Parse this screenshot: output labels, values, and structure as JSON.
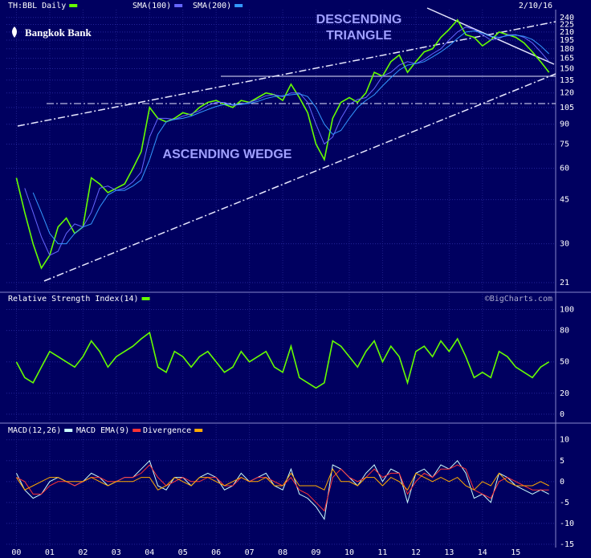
{
  "chart_data": [
    {
      "type": "line",
      "log_scale": true,
      "grid": true,
      "logo": "Bangkok Bank",
      "date": "2/10/16",
      "source": "©BigCharts.com",
      "annotations": [
        "DESCENDING",
        "TRIANGLE",
        "ASCENDING WEDGE"
      ],
      "x": [
        2000,
        2000.25,
        2000.5,
        2000.75,
        2001,
        2001.25,
        2001.5,
        2001.75,
        2002,
        2002.25,
        2002.5,
        2002.75,
        2003,
        2003.25,
        2003.5,
        2003.75,
        2004,
        2004.25,
        2004.5,
        2004.75,
        2005,
        2005.25,
        2005.5,
        2005.75,
        2006,
        2006.25,
        2006.5,
        2006.75,
        2007,
        2007.25,
        2007.5,
        2007.75,
        2008,
        2008.25,
        2008.5,
        2008.75,
        2009,
        2009.25,
        2009.5,
        2009.75,
        2010,
        2010.25,
        2010.5,
        2010.75,
        2011,
        2011.25,
        2011.5,
        2011.75,
        2012,
        2012.25,
        2012.5,
        2012.75,
        2013,
        2013.25,
        2013.5,
        2013.75,
        2014,
        2014.25,
        2014.5,
        2014.75,
        2015,
        2015.25,
        2015.5,
        2015.75,
        2016
      ],
      "xlim": [
        1999.7,
        2016.2
      ],
      "xticks": [
        {
          "value": 2000,
          "label": "00"
        },
        {
          "value": 2001,
          "label": "01"
        },
        {
          "value": 2002,
          "label": "02"
        },
        {
          "value": 2003,
          "label": "03"
        },
        {
          "value": 2004,
          "label": "04"
        },
        {
          "value": 2005,
          "label": "05"
        },
        {
          "value": 2006,
          "label": "06"
        },
        {
          "value": 2007,
          "label": "07"
        },
        {
          "value": 2008,
          "label": "08"
        },
        {
          "value": 2009,
          "label": "09"
        },
        {
          "value": 2010,
          "label": "10"
        },
        {
          "value": 2011,
          "label": "11"
        },
        {
          "value": 2012,
          "label": "12"
        },
        {
          "value": 2013,
          "label": "13"
        },
        {
          "value": 2014,
          "label": "14"
        },
        {
          "value": 2015,
          "label": "15"
        }
      ],
      "ylim": [
        19.5,
        258
      ],
      "yticks": [
        240,
        225,
        210,
        195,
        180,
        165,
        150,
        135,
        120,
        105,
        90,
        75,
        60,
        45,
        30,
        21
      ],
      "series": [
        {
          "name": "TH:BBL Daily",
          "color": "#66ff00",
          "values": [
            55,
            40,
            30,
            24,
            27,
            35,
            38,
            33,
            35,
            55,
            52,
            48,
            50,
            52,
            60,
            70,
            105,
            95,
            92,
            95,
            100,
            98,
            105,
            110,
            112,
            108,
            105,
            112,
            110,
            115,
            120,
            118,
            112,
            130,
            115,
            100,
            75,
            65,
            95,
            110,
            115,
            110,
            120,
            145,
            140,
            160,
            170,
            145,
            160,
            175,
            180,
            200,
            215,
            235,
            205,
            200,
            185,
            195,
            210,
            205,
            200,
            190,
            175,
            160,
            145
          ]
        },
        {
          "name": "SMA(100)",
          "color": "#6666ff",
          "values": [
            null,
            50,
            40,
            32,
            27,
            28,
            33,
            36,
            35,
            40,
            50,
            51,
            49,
            50,
            53,
            58,
            80,
            95,
            95,
            94,
            97,
            99,
            102,
            107,
            110,
            110,
            107,
            108,
            110,
            113,
            117,
            118,
            116,
            120,
            120,
            110,
            90,
            75,
            80,
            95,
            108,
            113,
            115,
            125,
            140,
            145,
            155,
            160,
            157,
            163,
            172,
            180,
            195,
            210,
            220,
            215,
            205,
            195,
            198,
            205,
            205,
            200,
            190,
            175,
            160
          ]
        },
        {
          "name": "SMA(200)",
          "color": "#3399ff",
          "values": [
            null,
            null,
            48,
            40,
            33,
            30,
            30,
            33,
            35,
            36,
            42,
            47,
            49,
            49,
            51,
            54,
            65,
            82,
            92,
            94,
            95,
            97,
            100,
            103,
            106,
            108,
            108,
            108,
            109,
            111,
            114,
            116,
            117,
            118,
            119,
            116,
            105,
            90,
            82,
            85,
            95,
            105,
            112,
            118,
            128,
            138,
            148,
            155,
            157,
            160,
            167,
            175,
            185,
            198,
            210,
            212,
            208,
            202,
            200,
            203,
            204,
            202,
            196,
            185,
            172
          ]
        }
      ]
    },
    {
      "type": "line",
      "grid": true,
      "ylim": [
        -7,
        115
      ],
      "yticks": [
        100,
        80,
        50,
        20,
        0
      ],
      "series": [
        {
          "name": "Relative Strength Index(14)",
          "color": "#66ff00",
          "values": [
            50,
            35,
            30,
            45,
            60,
            55,
            50,
            45,
            55,
            70,
            60,
            45,
            55,
            60,
            65,
            72,
            78,
            45,
            40,
            60,
            55,
            45,
            55,
            60,
            50,
            40,
            45,
            60,
            50,
            55,
            60,
            45,
            40,
            65,
            35,
            30,
            25,
            30,
            70,
            65,
            55,
            45,
            60,
            70,
            50,
            65,
            55,
            30,
            60,
            65,
            55,
            70,
            60,
            72,
            55,
            35,
            40,
            35,
            60,
            55,
            45,
            40,
            35,
            45,
            50
          ]
        }
      ]
    },
    {
      "type": "line",
      "grid": true,
      "ylim": [
        -15.4,
        13.6
      ],
      "yticks": [
        10,
        5,
        0,
        -5,
        -10,
        -15
      ],
      "series": [
        {
          "name": "MACD(12,26)",
          "color": "#ccffff",
          "values": [
            2,
            -2,
            -4,
            -3,
            0,
            1,
            0,
            -1,
            0,
            2,
            1,
            -1,
            0,
            1,
            1,
            3,
            5,
            -1,
            -2,
            1,
            1,
            -1,
            1,
            2,
            1,
            -2,
            -1,
            2,
            0,
            1,
            2,
            -1,
            -2,
            3,
            -3,
            -4,
            -6,
            -9,
            4,
            3,
            1,
            -1,
            2,
            4,
            0,
            3,
            2,
            -5,
            2,
            3,
            1,
            4,
            3,
            5,
            2,
            -4,
            -3,
            -5,
            2,
            1,
            -1,
            -2,
            -3,
            -2,
            -3
          ]
        },
        {
          "name": "MACD EMA(9)",
          "color": "#ff3333",
          "values": [
            1,
            0,
            -3,
            -3,
            -1,
            0,
            0,
            -1,
            0,
            1,
            1,
            0,
            0,
            1,
            1,
            2,
            4,
            1,
            -1,
            0,
            1,
            0,
            0,
            1,
            1,
            -1,
            -1,
            1,
            0,
            1,
            1,
            0,
            -1,
            1,
            -2,
            -3,
            -5,
            -7,
            1,
            3,
            1,
            0,
            1,
            3,
            1,
            2,
            2,
            -3,
            0,
            2,
            1,
            3,
            3,
            4,
            3,
            -2,
            -3,
            -4,
            0,
            1,
            0,
            -1,
            -2,
            -2,
            -2
          ]
        },
        {
          "name": "Divergence",
          "color": "#ffaa00",
          "values": [
            1,
            -2,
            -1,
            0,
            1,
            1,
            0,
            0,
            0,
            1,
            0,
            -1,
            0,
            0,
            0,
            1,
            1,
            -2,
            -1,
            1,
            0,
            -1,
            1,
            1,
            0,
            -1,
            0,
            1,
            0,
            0,
            1,
            -1,
            -1,
            2,
            -1,
            -1,
            -1,
            -2,
            3,
            0,
            0,
            -1,
            1,
            1,
            -1,
            1,
            0,
            -2,
            2,
            1,
            0,
            1,
            0,
            1,
            -1,
            -2,
            0,
            -1,
            2,
            0,
            -1,
            -1,
            -1,
            0,
            -1
          ]
        }
      ]
    }
  ]
}
